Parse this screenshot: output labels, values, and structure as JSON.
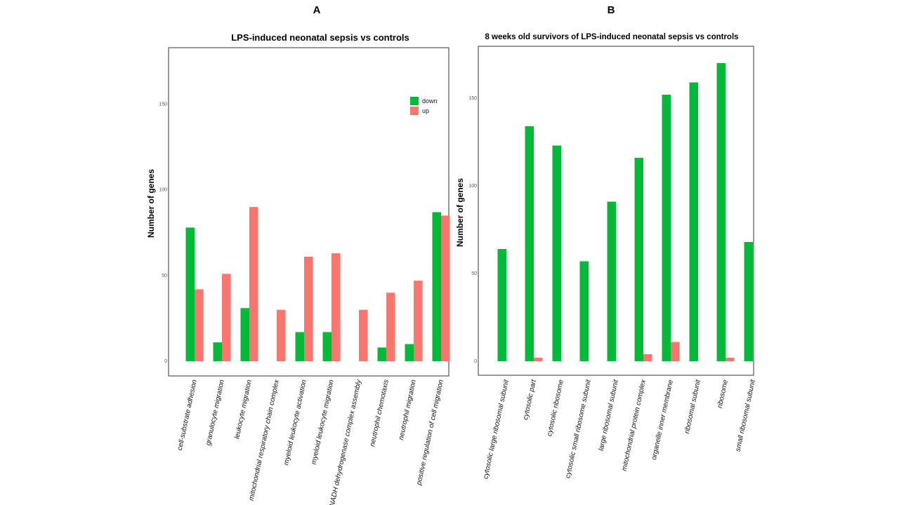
{
  "chart_data": [
    {
      "type": "bar",
      "panel": "A",
      "title": "LPS-induced neonatal sepsis vs controls",
      "ylabel": "Number of genes",
      "xlabel": "",
      "ylim": [
        0,
        180
      ],
      "yticks": [
        0,
        50,
        100,
        150
      ],
      "legend": "top-right",
      "categories": [
        "cell-substrate adhesion",
        "granulocyte migration",
        "leukocyte migration",
        "mitochondrial respiratory chain complex",
        "myeloid leukocyte activation",
        "myeloid leukocyte migration",
        "NADH dehydrogenase complex assembly",
        "neutrophil chemotaxis",
        "neutrophil migration",
        "positive regulation of cell migration"
      ],
      "series": [
        {
          "name": "down",
          "color": "#00BA38",
          "values": [
            78,
            11,
            31,
            0,
            17,
            17,
            0,
            8,
            10,
            87
          ]
        },
        {
          "name": "up",
          "color": "#F8766D",
          "values": [
            42,
            51,
            90,
            30,
            61,
            63,
            30,
            40,
            47,
            85
          ]
        }
      ]
    },
    {
      "type": "bar",
      "panel": "B",
      "title": "8 weeks old survivors of LPS-induced neonatal sepsis vs controls",
      "ylabel": "Number of genes",
      "xlabel": "",
      "ylim": [
        0,
        180
      ],
      "yticks": [
        0,
        50,
        100,
        150
      ],
      "legend": "none",
      "categories": [
        "cytosolic large ribosomal subunit",
        "cytosolic part",
        "cytosolic ribosome",
        "cytosolic small ribosome subunit",
        "large ribosomal subunit",
        "mitochondrial protein complex",
        "organelle inner membrane",
        "ribosomal subunit",
        "ribosome",
        "small ribosomal subunit"
      ],
      "series": [
        {
          "name": "down",
          "color": "#00BA38",
          "values": [
            64,
            134,
            123,
            57,
            91,
            116,
            152,
            159,
            170,
            68
          ]
        },
        {
          "name": "up",
          "color": "#F8766D",
          "values": [
            0,
            2,
            0,
            0,
            0,
            4,
            11,
            0,
            2,
            0
          ]
        }
      ]
    }
  ]
}
